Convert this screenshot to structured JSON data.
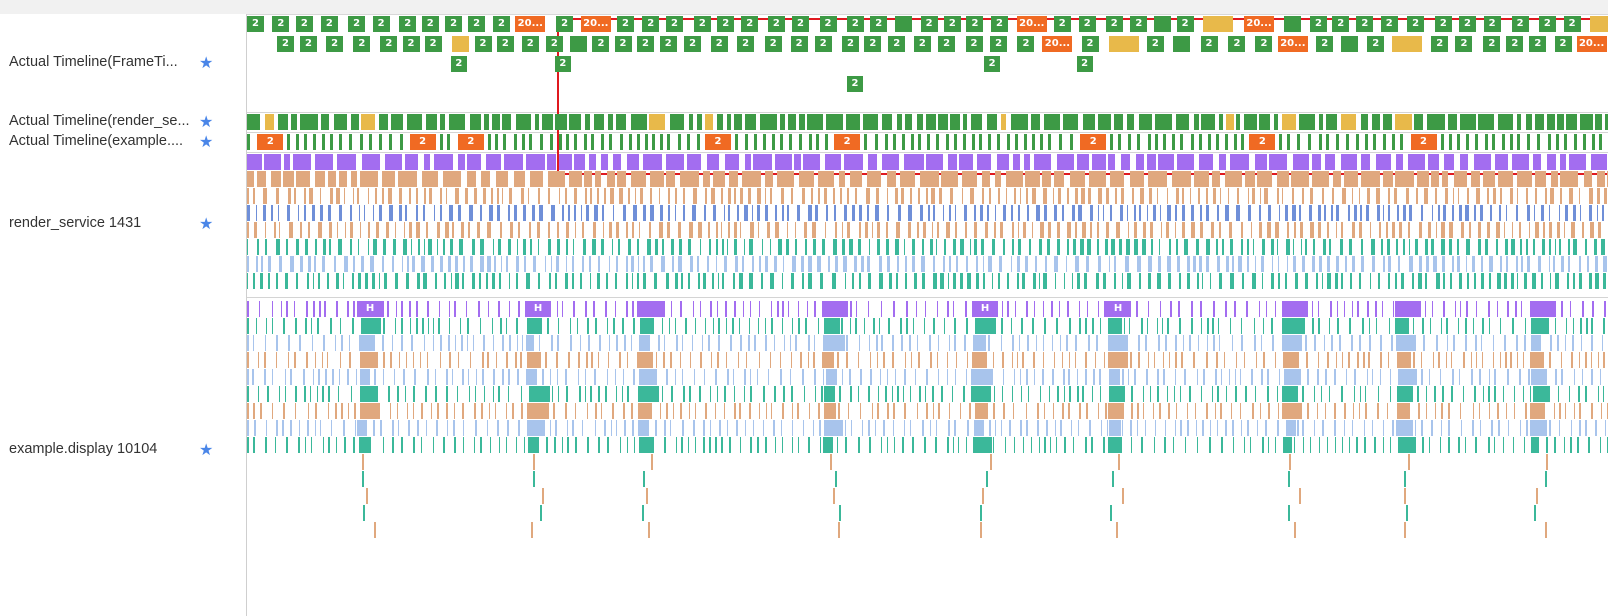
{
  "tracks": [
    {
      "label": "Actual Timeline(FrameTi...",
      "star": "★",
      "icon": "star-icon"
    },
    {
      "label": "Actual Timeline(render_se...",
      "star": "★",
      "icon": "star-icon"
    },
    {
      "label": "Actual Timeline(example....",
      "star": "★",
      "icon": "star-icon"
    },
    {
      "label": "render_service 1431",
      "star": "★",
      "icon": "star-icon"
    },
    {
      "label": "example.display 10104",
      "star": "★",
      "icon": "star-icon"
    }
  ],
  "frame_labels": {
    "short": "2",
    "long_orange": "20...",
    "trunc_green": "2...",
    "trunc_orange": "2...",
    "marker": "H"
  },
  "colors": {
    "green": "#3d9a45",
    "orange": "#f06a23",
    "yellow": "#e8b94a",
    "purple": "#a36df0",
    "tan": "#e0a87e",
    "teal": "#3bb89a",
    "lightblue": "#a8c4ec",
    "blue": "#6f8fd8",
    "selection": "#e0191f"
  }
}
